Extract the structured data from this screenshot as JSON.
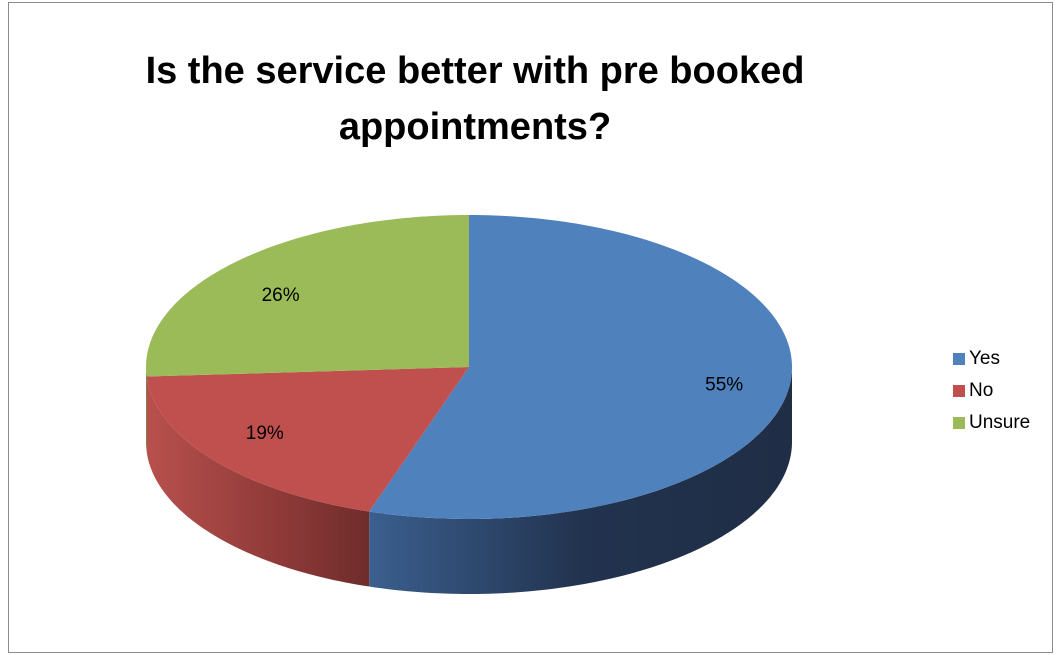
{
  "chart_data": {
    "type": "pie",
    "title_lines": [
      "Is the service better with pre booked",
      "appointments?"
    ],
    "categories": [
      "Yes",
      "No",
      "Unsure"
    ],
    "values": [
      55,
      19,
      26
    ],
    "data_labels": [
      "55%",
      "19%",
      "26%"
    ],
    "colors": [
      "#4f81bd",
      "#c0504d",
      "#9bbb59"
    ],
    "side_colors": [
      "#23324f",
      "#6e2c2b",
      "#5d7a2c"
    ],
    "legend_position": "right",
    "style": "3d-pie"
  }
}
